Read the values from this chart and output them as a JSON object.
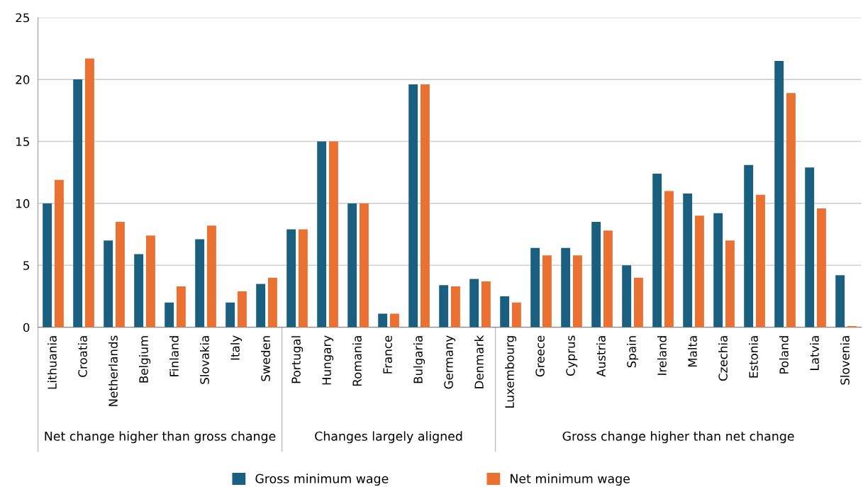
{
  "chart_data": {
    "type": "bar",
    "categories": [
      "Lithuania",
      "Croatia",
      "Netherlands",
      "Belgium",
      "Finland",
      "Slovakia",
      "Italy",
      "Sweden",
      "Portugal",
      "Hungary",
      "Romania",
      "France",
      "Bulgaria",
      "Germany",
      "Denmark",
      "Luxembourg",
      "Greece",
      "Cyprus",
      "Austria",
      "Spain",
      "Ireland",
      "Malta",
      "Czechia",
      "Estonia",
      "Poland",
      "Latvia",
      "Slovenia"
    ],
    "series": [
      {
        "name": "Gross minimum wage",
        "color": "#1a5f80",
        "values": [
          10.0,
          20.0,
          7.0,
          5.9,
          2.0,
          7.1,
          2.0,
          3.5,
          7.9,
          15.0,
          10.0,
          1.1,
          19.6,
          3.4,
          3.9,
          2.5,
          6.4,
          6.4,
          8.5,
          5.0,
          12.4,
          10.8,
          9.2,
          13.1,
          21.5,
          12.9,
          4.2
        ]
      },
      {
        "name": "Net minimum wage",
        "color": "#eb7132",
        "values": [
          11.9,
          21.7,
          8.5,
          7.4,
          3.3,
          8.2,
          2.9,
          4.0,
          7.9,
          15.0,
          10.0,
          1.1,
          19.6,
          3.3,
          3.7,
          2.0,
          5.8,
          5.8,
          7.8,
          4.0,
          11.0,
          9.0,
          7.0,
          10.7,
          18.9,
          9.6,
          0.1
        ]
      }
    ],
    "annotations": [
      "Net change higher than gross change",
      "Changes largely aligned",
      "Gross change higher than net change"
    ],
    "ylim": [
      0,
      25
    ],
    "yticks": [
      0,
      5,
      10,
      15,
      20,
      25
    ],
    "grid": "y",
    "legend": "bottom"
  }
}
